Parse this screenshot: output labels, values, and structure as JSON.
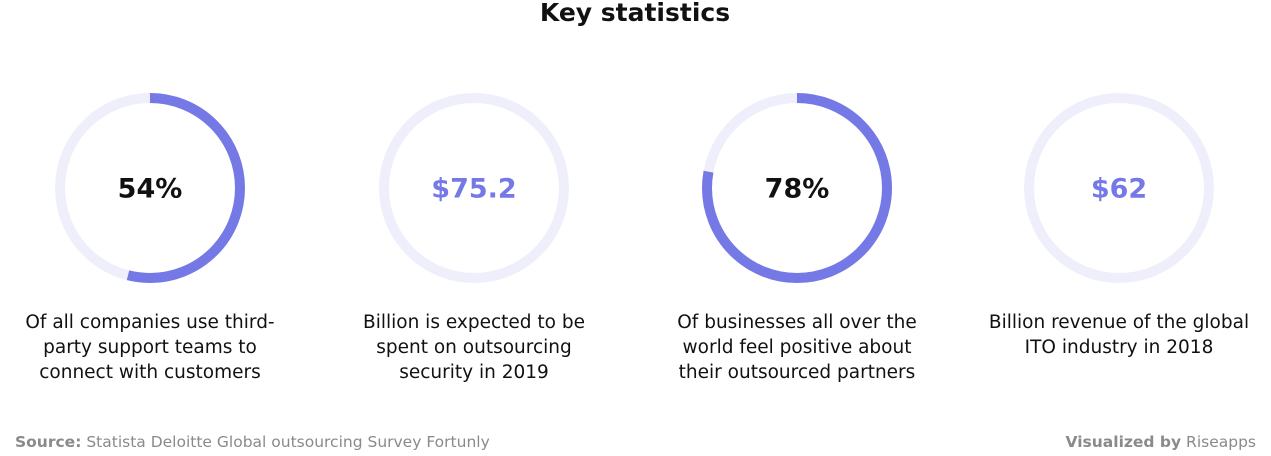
{
  "title": "Key statistics",
  "colors": {
    "track": "#efeffb",
    "arc": "#7479e6",
    "accent_text": "#7479e6",
    "plain_text": "#111111"
  },
  "items": [
    {
      "value": 54,
      "label": "54%",
      "description": [
        "Of all companies use third-",
        "party support teams to",
        "connect with customers"
      ]
    },
    {
      "label": "$75.2",
      "description": [
        "Billion is expected to be",
        "spent on outsourcing",
        "security in 2019"
      ]
    },
    {
      "value": 78,
      "label": "78%",
      "description": [
        "Of businesses all over the",
        "world feel positive about",
        "their outsourced partners"
      ]
    },
    {
      "label": "$62",
      "description": [
        "Billion revenue of the global",
        "ITO industry in 2018"
      ]
    }
  ],
  "source_label": "Source:",
  "source": "Statista Deloitte Global outsourcing Survey Fortunly",
  "credit_label": "Visualized by",
  "credit": "Riseapps"
}
